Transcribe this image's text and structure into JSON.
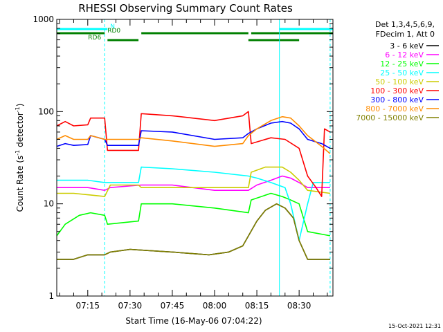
{
  "chart_data": {
    "type": "line",
    "title": "RHESSI Observing Summary Count Rates",
    "xlabel": "Start Time (16-May-06 07:04:22)",
    "ylabel_main": "Count Rate (s",
    "ylabel_sup1": "-1",
    "ylabel_mid": " detector",
    "ylabel_sup2": "-1",
    "ylabel_end": ")",
    "y_scale": "log",
    "ylim": [
      1,
      1000
    ],
    "xlim": [
      "07:04",
      "08:42"
    ],
    "x_ticks": [
      "07:15",
      "07:30",
      "07:45",
      "08:00",
      "08:15",
      "08:30"
    ],
    "y_ticks": [
      "1",
      "10",
      "100",
      "1000"
    ],
    "legend_header": [
      "Det 1,3,4,5,6,9,",
      "FDecim 1, Att 0"
    ],
    "footer": "15-Oct-2021 12:31",
    "flags": [
      {
        "label": "N",
        "color": "#00ffff",
        "segments": [
          [
            "07:04",
            "07:22"
          ],
          [
            "08:23",
            "08:42"
          ]
        ]
      },
      {
        "label": "RD0",
        "color": "#008000",
        "segments": [
          [
            "07:04",
            "07:21"
          ],
          [
            "07:34",
            "08:12"
          ],
          [
            "08:13",
            "08:42"
          ]
        ]
      },
      {
        "label": "RD6",
        "color": "#008000",
        "segments": [
          [
            "07:22",
            "07:33"
          ],
          [
            "08:12",
            "08:30"
          ]
        ]
      }
    ],
    "vlines": [
      {
        "time": "07:04",
        "color": "#00ffff",
        "style": "solid"
      },
      {
        "time": "07:21",
        "color": "#00ffff",
        "style": "dashed"
      },
      {
        "time": "08:23",
        "color": "#00ffff",
        "style": "solid"
      },
      {
        "time": "08:41",
        "color": "#00ffff",
        "style": "dashed"
      }
    ],
    "series": [
      {
        "name": "3 - 6 keV",
        "color": "#000000",
        "points": [
          [
            "07:04",
            2.5
          ],
          [
            "07:10",
            2.5
          ],
          [
            "07:15",
            2.8
          ],
          [
            "07:21",
            2.8
          ],
          [
            "07:23",
            3.0
          ],
          [
            "07:30",
            3.2
          ],
          [
            "07:45",
            3.0
          ],
          [
            "07:58",
            2.8
          ],
          [
            "08:05",
            3.0
          ],
          [
            "08:10",
            3.5
          ],
          [
            "08:15",
            6.5
          ],
          [
            "08:18",
            8.5
          ],
          [
            "08:22",
            10.0
          ],
          [
            "08:25",
            9.0
          ],
          [
            "08:28",
            7.0
          ],
          [
            "08:30",
            4.0
          ],
          [
            "08:33",
            2.5
          ],
          [
            "08:41",
            2.5
          ]
        ]
      },
      {
        "name": "6 - 12 keV",
        "color": "#ff00ff",
        "points": [
          [
            "07:04",
            15
          ],
          [
            "07:10",
            15
          ],
          [
            "07:15",
            15
          ],
          [
            "07:21",
            14
          ],
          [
            "07:23",
            15
          ],
          [
            "07:34",
            16
          ],
          [
            "07:45",
            16
          ],
          [
            "08:00",
            14
          ],
          [
            "08:12",
            14
          ],
          [
            "08:15",
            16
          ],
          [
            "08:20",
            18
          ],
          [
            "08:24",
            20
          ],
          [
            "08:27",
            19
          ],
          [
            "08:30",
            17
          ],
          [
            "08:33",
            15
          ],
          [
            "08:41",
            15
          ]
        ]
      },
      {
        "name": "12 - 25 keV",
        "color": "#00ff00",
        "points": [
          [
            "07:04",
            4.5
          ],
          [
            "07:07",
            6
          ],
          [
            "07:12",
            7.5
          ],
          [
            "07:16",
            8.0
          ],
          [
            "07:21",
            7.5
          ],
          [
            "07:22",
            6
          ],
          [
            "07:33",
            6.5
          ],
          [
            "07:34",
            10
          ],
          [
            "07:45",
            10
          ],
          [
            "08:00",
            9
          ],
          [
            "08:12",
            8
          ],
          [
            "08:13",
            11
          ],
          [
            "08:20",
            13
          ],
          [
            "08:24",
            12
          ],
          [
            "08:27",
            11
          ],
          [
            "08:30",
            10
          ],
          [
            "08:33",
            5
          ],
          [
            "08:41",
            4.5
          ]
        ]
      },
      {
        "name": "25 - 50 keV",
        "color": "#00ffff",
        "points": [
          [
            "07:04",
            18
          ],
          [
            "07:10",
            18
          ],
          [
            "07:15",
            18
          ],
          [
            "07:21",
            17
          ],
          [
            "07:23",
            17
          ],
          [
            "07:33",
            17
          ],
          [
            "07:34",
            25
          ],
          [
            "07:45",
            24
          ],
          [
            "08:00",
            22
          ],
          [
            "08:12",
            20
          ],
          [
            "08:15",
            19
          ],
          [
            "08:20",
            17
          ],
          [
            "08:25",
            15
          ],
          [
            "08:27",
            10
          ],
          [
            "08:30",
            4
          ],
          [
            "08:33",
            10
          ],
          [
            "08:35",
            17
          ],
          [
            "08:41",
            17
          ]
        ]
      },
      {
        "name": "50 - 100 keV",
        "color": "#cccc00",
        "points": [
          [
            "07:04",
            13
          ],
          [
            "07:10",
            13
          ],
          [
            "07:21",
            12
          ],
          [
            "07:23",
            16
          ],
          [
            "07:33",
            16
          ],
          [
            "07:34",
            15
          ],
          [
            "07:45",
            15
          ],
          [
            "08:00",
            15
          ],
          [
            "08:12",
            15
          ],
          [
            "08:13",
            22
          ],
          [
            "08:18",
            25
          ],
          [
            "08:24",
            25
          ],
          [
            "08:27",
            22
          ],
          [
            "08:30",
            18
          ],
          [
            "08:33",
            14
          ],
          [
            "08:41",
            13
          ]
        ]
      },
      {
        "name": "100 - 300 keV",
        "color": "#ff0000",
        "points": [
          [
            "07:04",
            70
          ],
          [
            "07:07",
            78
          ],
          [
            "07:10",
            70
          ],
          [
            "07:15",
            72
          ],
          [
            "07:16",
            85
          ],
          [
            "07:21",
            85
          ],
          [
            "07:22",
            38
          ],
          [
            "07:33",
            38
          ],
          [
            "07:34",
            95
          ],
          [
            "07:45",
            90
          ],
          [
            "08:00",
            80
          ],
          [
            "08:10",
            90
          ],
          [
            "08:12",
            100
          ],
          [
            "08:13",
            45
          ],
          [
            "08:20",
            52
          ],
          [
            "08:25",
            50
          ],
          [
            "08:30",
            40
          ],
          [
            "08:33",
            20
          ],
          [
            "08:36",
            15
          ],
          [
            "08:38",
            12
          ],
          [
            "08:39",
            65
          ],
          [
            "08:41",
            60
          ]
        ]
      },
      {
        "name": "300 - 800 keV",
        "color": "#0000ff",
        "points": [
          [
            "07:04",
            42
          ],
          [
            "07:07",
            45
          ],
          [
            "07:10",
            43
          ],
          [
            "07:15",
            44
          ],
          [
            "07:16",
            55
          ],
          [
            "07:21",
            50
          ],
          [
            "07:22",
            43
          ],
          [
            "07:33",
            43
          ],
          [
            "07:34",
            62
          ],
          [
            "07:45",
            60
          ],
          [
            "08:00",
            50
          ],
          [
            "08:10",
            52
          ],
          [
            "08:12",
            58
          ],
          [
            "08:15",
            65
          ],
          [
            "08:20",
            75
          ],
          [
            "08:24",
            78
          ],
          [
            "08:27",
            75
          ],
          [
            "08:30",
            65
          ],
          [
            "08:33",
            50
          ],
          [
            "08:38",
            45
          ],
          [
            "08:41",
            40
          ]
        ]
      },
      {
        "name": "800 - 7000 keV",
        "color": "#ff8c00",
        "points": [
          [
            "07:04",
            50
          ],
          [
            "07:07",
            55
          ],
          [
            "07:10",
            50
          ],
          [
            "07:15",
            50
          ],
          [
            "07:16",
            55
          ],
          [
            "07:21",
            50
          ],
          [
            "07:22",
            50
          ],
          [
            "07:33",
            50
          ],
          [
            "07:34",
            52
          ],
          [
            "07:45",
            48
          ],
          [
            "08:00",
            42
          ],
          [
            "08:10",
            45
          ],
          [
            "08:12",
            55
          ],
          [
            "08:15",
            65
          ],
          [
            "08:20",
            80
          ],
          [
            "08:24",
            88
          ],
          [
            "08:27",
            85
          ],
          [
            "08:30",
            70
          ],
          [
            "08:33",
            55
          ],
          [
            "08:38",
            42
          ],
          [
            "08:41",
            35
          ]
        ]
      },
      {
        "name": "7000 - 15000 keV",
        "color": "#808000",
        "points": [
          [
            "07:04",
            2.5
          ],
          [
            "07:10",
            2.5
          ],
          [
            "07:15",
            2.8
          ],
          [
            "07:21",
            2.8
          ],
          [
            "07:23",
            3.0
          ],
          [
            "07:30",
            3.2
          ],
          [
            "07:45",
            3.0
          ],
          [
            "07:58",
            2.8
          ],
          [
            "08:05",
            3.0
          ],
          [
            "08:10",
            3.5
          ],
          [
            "08:15",
            6.5
          ],
          [
            "08:18",
            8.5
          ],
          [
            "08:22",
            10.0
          ],
          [
            "08:25",
            9.0
          ],
          [
            "08:28",
            7.0
          ],
          [
            "08:30",
            4.0
          ],
          [
            "08:33",
            2.5
          ],
          [
            "08:41",
            2.5
          ]
        ]
      }
    ]
  }
}
